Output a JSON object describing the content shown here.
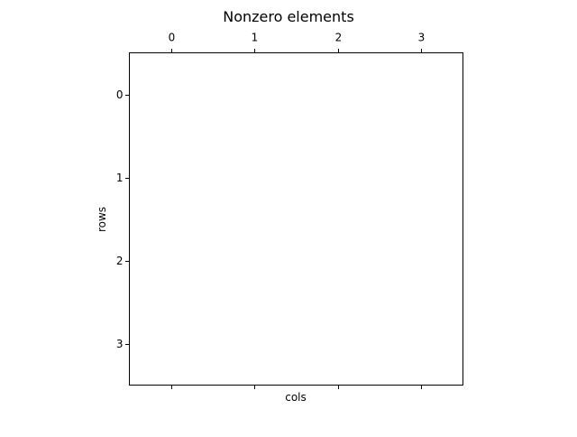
{
  "chart_data": {
    "type": "heatmap",
    "title": "Nonzero elements",
    "xlabel": "cols",
    "ylabel": "rows",
    "x_ticks": [
      "0",
      "1",
      "2",
      "3"
    ],
    "y_ticks": [
      "0",
      "1",
      "2",
      "3"
    ],
    "xlim": [
      -0.5,
      3.5
    ],
    "ylim": [
      3.5,
      -0.5
    ],
    "x_tick_labels_position": "top",
    "y_axis_inverted": true,
    "grid": false,
    "nonzero_points": []
  },
  "colors": {
    "background": "#ffffff",
    "axes": "#000000",
    "marker": "#1f77b4"
  }
}
